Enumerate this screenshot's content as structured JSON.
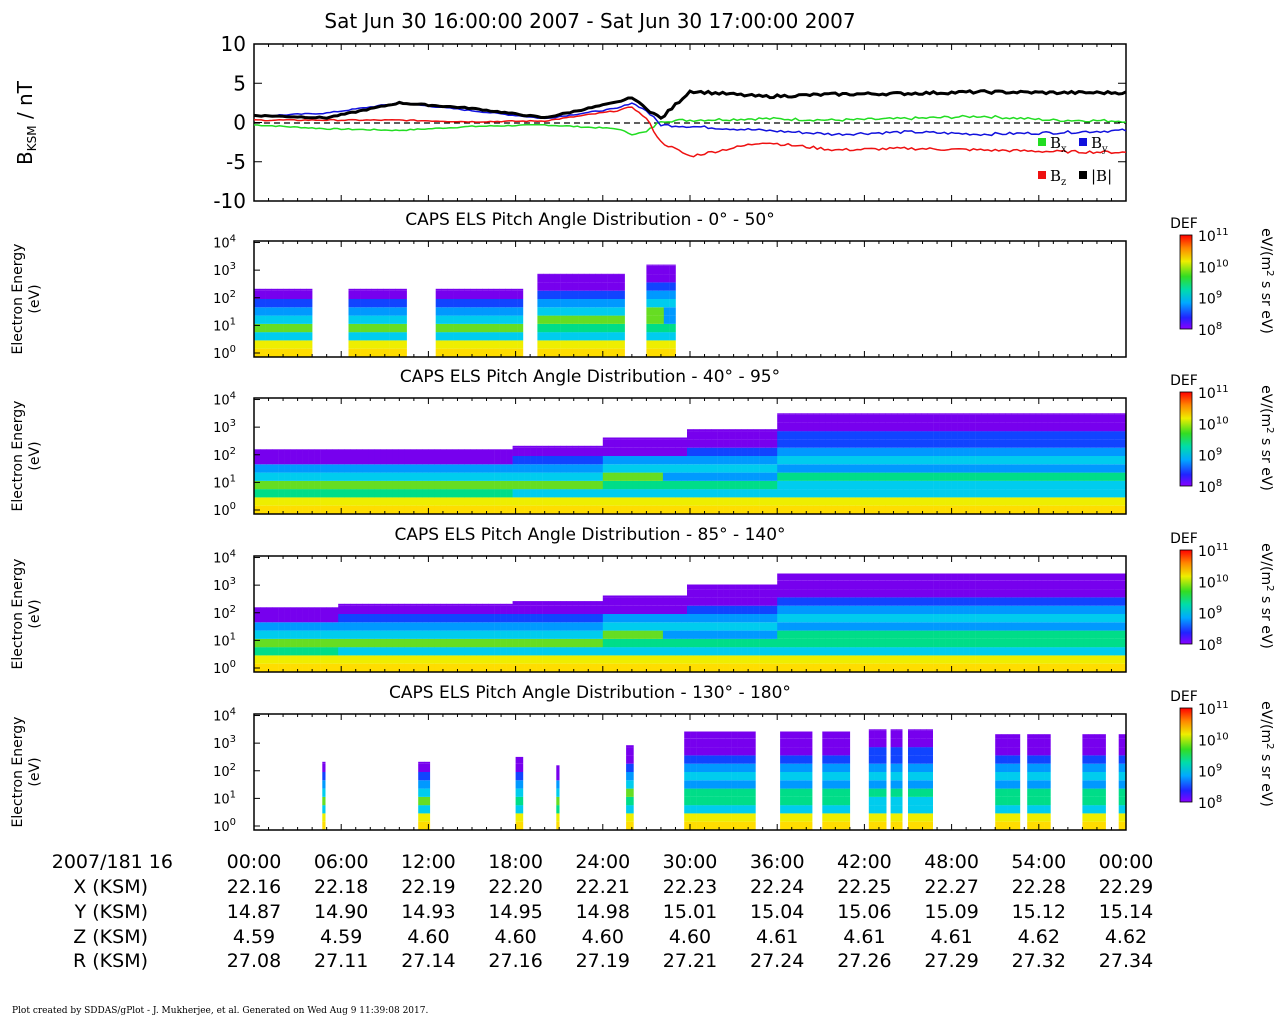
{
  "title": "Sat Jun 30 16:00:00 2007 - Sat Jun 30 17:00:00 2007",
  "footer": "Plot created by SDDAS/gPlot - J. Mukherjee, et al.  Generated on Wed Aug 9 11:39:08 2017.",
  "colors": {
    "bx": "#22dd22",
    "by": "#1111dd",
    "bz": "#ee1111",
    "btotal": "#000000",
    "colorbar": [
      "#ff0000",
      "#ff8800",
      "#ffee00",
      "#44dd22",
      "#00dd99",
      "#00ccff",
      "#0044ff",
      "#8800ff"
    ]
  },
  "mag_panel": {
    "ylabel_main": "B",
    "ylabel_sub": "KSM",
    "ylabel_rest": " / nT",
    "yticks": [
      "10",
      "5",
      "0",
      "-5",
      "-10"
    ],
    "legend": {
      "bx": "B",
      "bx_sub": "x",
      "by": "B",
      "by_sub": "y",
      "bz": "B",
      "bz_sub": "z",
      "btotal": "|B|"
    }
  },
  "spec_panels": [
    {
      "title": "CAPS ELS Pitch Angle Distribution - 0° - 50°"
    },
    {
      "title": "CAPS ELS Pitch Angle Distribution - 40° - 95°"
    },
    {
      "title": "CAPS ELS Pitch Angle Distribution - 85° - 140°"
    },
    {
      "title": "CAPS ELS Pitch Angle Distribution - 130° - 180°"
    }
  ],
  "spec_ylabel": [
    "Electron Energy",
    "(eV)"
  ],
  "spec_yticks": [
    {
      "base": "10",
      "exp": "4"
    },
    {
      "base": "10",
      "exp": "3"
    },
    {
      "base": "10",
      "exp": "2"
    },
    {
      "base": "10",
      "exp": "1"
    },
    {
      "base": "10",
      "exp": "0"
    }
  ],
  "colorbar": {
    "label": "DEF",
    "units_pre": "eV/(m",
    "units_exp": "2",
    "units_post": " s sr eV)",
    "ticks": [
      {
        "base": "10",
        "exp": "11"
      },
      {
        "base": "10",
        "exp": "10"
      },
      {
        "base": "10",
        "exp": "9"
      },
      {
        "base": "10",
        "exp": "8"
      }
    ]
  },
  "ephemeris": {
    "rows": [
      {
        "label": "2007/181 16",
        "values": [
          "00:00",
          "06:00",
          "12:00",
          "18:00",
          "24:00",
          "30:00",
          "36:00",
          "42:00",
          "48:00",
          "54:00",
          "00:00"
        ]
      },
      {
        "label": "X (KSM)",
        "values": [
          "22.16",
          "22.18",
          "22.19",
          "22.20",
          "22.21",
          "22.23",
          "22.24",
          "22.25",
          "22.27",
          "22.28",
          "22.29"
        ]
      },
      {
        "label": "Y (KSM)",
        "values": [
          "14.87",
          "14.90",
          "14.93",
          "14.95",
          "14.98",
          "15.01",
          "15.04",
          "15.06",
          "15.09",
          "15.12",
          "15.14"
        ]
      },
      {
        "label": "Z (KSM)",
        "values": [
          "4.59",
          "4.59",
          "4.60",
          "4.60",
          "4.60",
          "4.60",
          "4.61",
          "4.61",
          "4.61",
          "4.62",
          "4.62"
        ]
      },
      {
        "label": "R (KSM)",
        "values": [
          "27.08",
          "27.11",
          "27.14",
          "27.16",
          "27.19",
          "27.21",
          "27.24",
          "27.26",
          "27.29",
          "27.32",
          "27.34"
        ]
      }
    ]
  },
  "chart_data": [
    {
      "type": "line",
      "x_unit": "minutes after 16:00",
      "ylim": [
        -10,
        10
      ],
      "series": [
        {
          "name": "Bx",
          "x": [
            0,
            5,
            10,
            15,
            20,
            25,
            26,
            27,
            28,
            30,
            35,
            40,
            45,
            50,
            55,
            60
          ],
          "values": [
            -0.3,
            -0.8,
            -1.0,
            -0.5,
            -0.3,
            -0.8,
            -1.5,
            -1.2,
            0.2,
            0.3,
            0.5,
            0.3,
            0.5,
            0.8,
            0.3,
            0.2
          ]
        },
        {
          "name": "By",
          "x": [
            0,
            5,
            10,
            15,
            20,
            25,
            26,
            27,
            28,
            30,
            35,
            40,
            45,
            50,
            55,
            60
          ],
          "values": [
            0.8,
            1.2,
            2.5,
            1.5,
            0.5,
            1.8,
            2.5,
            1.5,
            -0.3,
            -0.5,
            -1.0,
            -1.5,
            -1.2,
            -1.5,
            -1.3,
            -1.0
          ]
        },
        {
          "name": "Bz",
          "x": [
            0,
            5,
            10,
            15,
            20,
            25,
            26,
            27,
            28,
            30,
            35,
            40,
            45,
            50,
            55,
            60
          ],
          "values": [
            0.3,
            0.3,
            0.3,
            0.1,
            0.2,
            1.5,
            2.0,
            0.5,
            -2.5,
            -4.3,
            -2.5,
            -3.5,
            -3.3,
            -3.5,
            -3.7,
            -3.8
          ]
        },
        {
          "name": "|B|",
          "x": [
            0,
            5,
            10,
            15,
            20,
            25,
            26,
            27,
            28,
            30,
            35,
            40,
            45,
            50,
            55,
            60
          ],
          "values": [
            0.9,
            0.6,
            2.5,
            1.8,
            0.6,
            2.6,
            3.2,
            1.8,
            0.5,
            4.0,
            3.3,
            3.6,
            3.7,
            3.9,
            3.8,
            3.8
          ]
        }
      ]
    },
    {
      "type": "heatmap",
      "title": "CAPS ELS Pitch Angle Distribution - 0° - 50°",
      "ylabel": "Electron Energy (eV)",
      "y_scale": "log",
      "ylim": [
        1,
        10000
      ],
      "data_intervals_minutes": [
        [
          0,
          4
        ],
        [
          6.5,
          10.5
        ],
        [
          12.5,
          18.5
        ],
        [
          19.5,
          25.5
        ],
        [
          27,
          29
        ]
      ],
      "max_energy_eV": [
        200,
        200,
        200,
        700,
        1500
      ]
    },
    {
      "type": "heatmap",
      "title": "CAPS ELS Pitch Angle Distribution - 40° - 95°",
      "ylabel": "Electron Energy (eV)",
      "y_scale": "log",
      "ylim": [
        1,
        10000
      ],
      "data_intervals_minutes": [
        [
          0,
          60
        ]
      ],
      "max_energy_eV": [
        150,
        150,
        150,
        200,
        400,
        800,
        3000,
        3000,
        3000,
        3000,
        3000
      ]
    },
    {
      "type": "heatmap",
      "title": "CAPS ELS Pitch Angle Distribution - 85° - 140°",
      "ylabel": "Electron Energy (eV)",
      "y_scale": "log",
      "ylim": [
        1,
        10000
      ],
      "data_intervals_minutes": [
        [
          0,
          60
        ]
      ],
      "max_energy_eV": [
        150,
        200,
        200,
        250,
        400,
        1000,
        2500,
        2500,
        2500,
        2500,
        2500
      ]
    },
    {
      "type": "heatmap",
      "title": "CAPS ELS Pitch Angle Distribution - 130° - 180°",
      "ylabel": "Electron Energy (eV)",
      "y_scale": "log",
      "ylim": [
        1,
        10000
      ],
      "data_intervals_minutes": [
        [
          4.7,
          4.9
        ],
        [
          11.3,
          12.1
        ],
        [
          18,
          18.5
        ],
        [
          20.8,
          21
        ],
        [
          25.6,
          26.1
        ],
        [
          29.6,
          34.5
        ],
        [
          36.2,
          38.4
        ],
        [
          39.1,
          41
        ],
        [
          42.3,
          43.5
        ],
        [
          43.8,
          44.6
        ],
        [
          45,
          46.7
        ],
        [
          51,
          52.7
        ],
        [
          53.2,
          54.8
        ],
        [
          57,
          58.6
        ],
        [
          59.5,
          60
        ]
      ],
      "max_energy_eV": [
        200,
        200,
        300,
        150,
        800,
        2500,
        2500,
        2500,
        3000,
        3000,
        3000,
        2000,
        2000,
        2000,
        2000
      ]
    },
    {
      "type": "heatmap",
      "title": "Colorbar DEF",
      "y_scale": "log",
      "ylim": [
        100000000,
        100000000000
      ]
    }
  ]
}
